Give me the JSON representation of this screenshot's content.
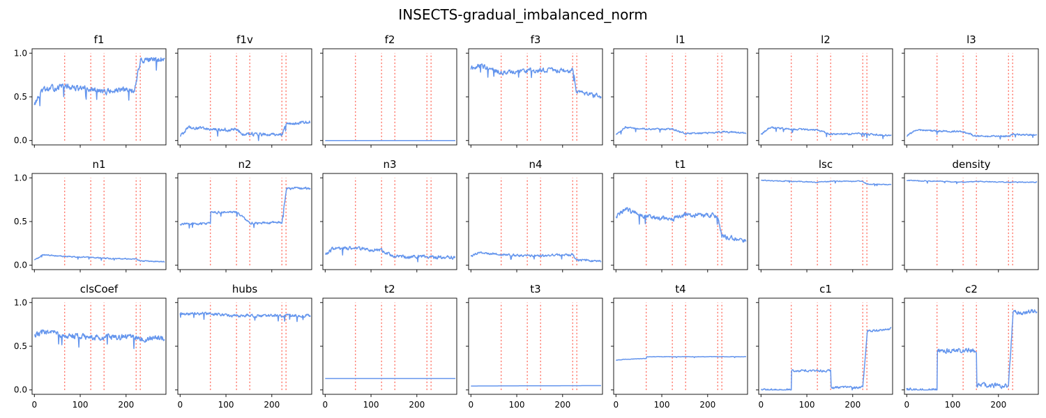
{
  "figure": {
    "title": "INSECTS-gradual_imbalanced_norm"
  },
  "chart_data": {
    "type": "line",
    "title": "INSECTS-gradual_imbalanced_norm",
    "xlim": [
      -5,
      287
    ],
    "ylim": [
      -0.05,
      1.05
    ],
    "xticks": [
      0,
      100,
      200
    ],
    "yticks": [
      0.0,
      0.5,
      1.0
    ],
    "ytick_labels": [
      "0.0",
      "0.5",
      "1.0"
    ],
    "series_color": "#6495ED",
    "drift_color": "#FF6F61",
    "drift_points": [
      66,
      123,
      152,
      222,
      231
    ],
    "grid": false,
    "n_points": 285,
    "panels": [
      {
        "title": "f1",
        "levels": [
          [
            0,
            0.42
          ],
          [
            20,
            0.58
          ],
          [
            66,
            0.62
          ],
          [
            123,
            0.58
          ],
          [
            152,
            0.56
          ],
          [
            218,
            0.58
          ],
          [
            232,
            0.92
          ],
          [
            284,
            0.93
          ]
        ],
        "noise": 0.05
      },
      {
        "title": "f1v",
        "levels": [
          [
            0,
            0.06
          ],
          [
            20,
            0.15
          ],
          [
            66,
            0.13
          ],
          [
            123,
            0.12
          ],
          [
            140,
            0.07
          ],
          [
            222,
            0.07
          ],
          [
            231,
            0.18
          ],
          [
            284,
            0.22
          ]
        ],
        "noise": 0.03
      },
      {
        "title": "f2",
        "levels": [
          [
            0,
            0.0
          ],
          [
            284,
            0.0
          ]
        ],
        "noise": 0.0
      },
      {
        "title": "f3",
        "levels": [
          [
            0,
            0.82
          ],
          [
            20,
            0.86
          ],
          [
            66,
            0.78
          ],
          [
            123,
            0.8
          ],
          [
            152,
            0.8
          ],
          [
            222,
            0.8
          ],
          [
            231,
            0.55
          ],
          [
            284,
            0.5
          ]
        ],
        "noise": 0.04
      },
      {
        "title": "l1",
        "levels": [
          [
            0,
            0.07
          ],
          [
            20,
            0.15
          ],
          [
            66,
            0.13
          ],
          [
            123,
            0.13
          ],
          [
            152,
            0.08
          ],
          [
            222,
            0.09
          ],
          [
            231,
            0.1
          ],
          [
            284,
            0.09
          ]
        ],
        "noise": 0.015
      },
      {
        "title": "l2",
        "levels": [
          [
            0,
            0.07
          ],
          [
            20,
            0.15
          ],
          [
            66,
            0.13
          ],
          [
            123,
            0.12
          ],
          [
            152,
            0.07
          ],
          [
            222,
            0.08
          ],
          [
            231,
            0.07
          ],
          [
            284,
            0.06
          ]
        ],
        "noise": 0.015
      },
      {
        "title": "l3",
        "levels": [
          [
            0,
            0.05
          ],
          [
            20,
            0.12
          ],
          [
            66,
            0.11
          ],
          [
            123,
            0.1
          ],
          [
            152,
            0.05
          ],
          [
            222,
            0.05
          ],
          [
            231,
            0.07
          ],
          [
            284,
            0.06
          ]
        ],
        "noise": 0.015
      },
      {
        "title": "n1",
        "levels": [
          [
            0,
            0.06
          ],
          [
            20,
            0.12
          ],
          [
            66,
            0.1
          ],
          [
            123,
            0.09
          ],
          [
            152,
            0.08
          ],
          [
            222,
            0.07
          ],
          [
            231,
            0.05
          ],
          [
            284,
            0.04
          ]
        ],
        "noise": 0.01
      },
      {
        "title": "n2",
        "levels": [
          [
            0,
            0.47
          ],
          [
            66,
            0.48
          ],
          [
            67,
            0.6
          ],
          [
            123,
            0.61
          ],
          [
            152,
            0.48
          ],
          [
            222,
            0.49
          ],
          [
            232,
            0.88
          ],
          [
            284,
            0.88
          ]
        ],
        "noise": 0.02
      },
      {
        "title": "n3",
        "levels": [
          [
            0,
            0.12
          ],
          [
            20,
            0.2
          ],
          [
            66,
            0.19
          ],
          [
            123,
            0.17
          ],
          [
            152,
            0.1
          ],
          [
            222,
            0.1
          ],
          [
            231,
            0.09
          ],
          [
            284,
            0.09
          ]
        ],
        "noise": 0.03
      },
      {
        "title": "n4",
        "levels": [
          [
            0,
            0.1
          ],
          [
            20,
            0.15
          ],
          [
            66,
            0.12
          ],
          [
            123,
            0.11
          ],
          [
            152,
            0.11
          ],
          [
            222,
            0.12
          ],
          [
            231,
            0.06
          ],
          [
            284,
            0.05
          ]
        ],
        "noise": 0.02
      },
      {
        "title": "t1",
        "levels": [
          [
            0,
            0.55
          ],
          [
            20,
            0.64
          ],
          [
            66,
            0.55
          ],
          [
            123,
            0.53
          ],
          [
            152,
            0.58
          ],
          [
            222,
            0.57
          ],
          [
            231,
            0.33
          ],
          [
            284,
            0.28
          ]
        ],
        "noise": 0.04
      },
      {
        "title": "lsc",
        "levels": [
          [
            0,
            0.97
          ],
          [
            66,
            0.96
          ],
          [
            123,
            0.95
          ],
          [
            152,
            0.96
          ],
          [
            222,
            0.96
          ],
          [
            231,
            0.93
          ],
          [
            284,
            0.92
          ]
        ],
        "noise": 0.008
      },
      {
        "title": "density",
        "levels": [
          [
            0,
            0.97
          ],
          [
            66,
            0.96
          ],
          [
            123,
            0.95
          ],
          [
            152,
            0.96
          ],
          [
            222,
            0.95
          ],
          [
            231,
            0.95
          ],
          [
            284,
            0.95
          ]
        ],
        "noise": 0.008
      },
      {
        "title": "clsCoef",
        "levels": [
          [
            0,
            0.62
          ],
          [
            20,
            0.66
          ],
          [
            66,
            0.63
          ],
          [
            123,
            0.6
          ],
          [
            152,
            0.6
          ],
          [
            222,
            0.6
          ],
          [
            231,
            0.58
          ],
          [
            284,
            0.6
          ]
        ],
        "noise": 0.05
      },
      {
        "title": "hubs",
        "levels": [
          [
            0,
            0.87
          ],
          [
            66,
            0.87
          ],
          [
            123,
            0.85
          ],
          [
            152,
            0.85
          ],
          [
            222,
            0.85
          ],
          [
            231,
            0.85
          ],
          [
            284,
            0.85
          ]
        ],
        "noise": 0.025
      },
      {
        "title": "t2",
        "levels": [
          [
            0,
            0.13
          ],
          [
            284,
            0.13
          ]
        ],
        "noise": 0.0
      },
      {
        "title": "t3",
        "levels": [
          [
            0,
            0.045
          ],
          [
            284,
            0.05
          ]
        ],
        "noise": 0.0
      },
      {
        "title": "t4",
        "levels": [
          [
            0,
            0.34
          ],
          [
            20,
            0.35
          ],
          [
            66,
            0.36
          ],
          [
            67,
            0.38
          ],
          [
            284,
            0.38
          ]
        ],
        "noise": 0.004
      },
      {
        "title": "c1",
        "levels": [
          [
            0,
            0.0
          ],
          [
            66,
            0.0
          ],
          [
            67,
            0.22
          ],
          [
            123,
            0.22
          ],
          [
            152,
            0.22
          ],
          [
            153,
            0.03
          ],
          [
            222,
            0.03
          ],
          [
            232,
            0.67
          ],
          [
            284,
            0.7
          ]
        ],
        "noise": 0.02
      },
      {
        "title": "c2",
        "levels": [
          [
            0,
            0.0
          ],
          [
            66,
            0.0
          ],
          [
            67,
            0.45
          ],
          [
            123,
            0.45
          ],
          [
            152,
            0.45
          ],
          [
            153,
            0.05
          ],
          [
            222,
            0.05
          ],
          [
            232,
            0.88
          ],
          [
            284,
            0.9
          ]
        ],
        "noise": 0.04
      }
    ]
  }
}
